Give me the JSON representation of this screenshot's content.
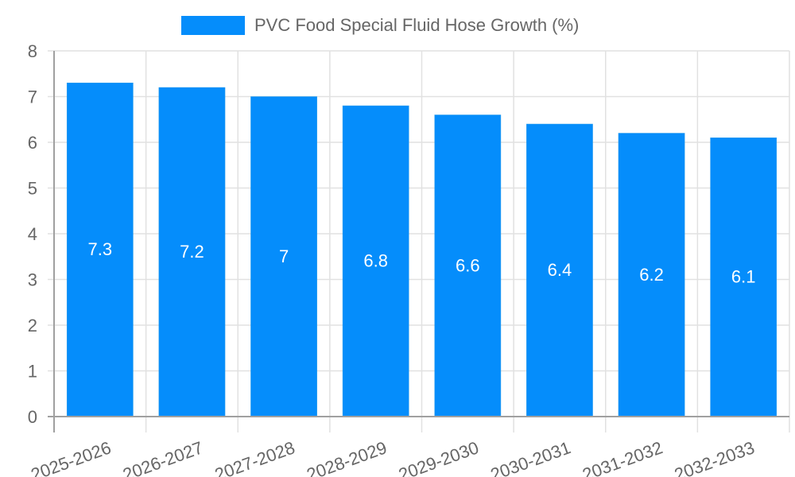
{
  "chart_data": {
    "type": "bar",
    "title": "",
    "legend": [
      {
        "label": "PVC Food Special Fluid Hose Growth (%)",
        "color": "#058DFB"
      }
    ],
    "legend_position": "top",
    "categories": [
      "2025-2026",
      "2026-2027",
      "2027-2028",
      "2028-2029",
      "2029-2030",
      "2030-2031",
      "2031-2032",
      "2032-2033"
    ],
    "series": [
      {
        "name": "PVC Food Special Fluid Hose Growth (%)",
        "values": [
          7.3,
          7.2,
          7,
          6.8,
          6.6,
          6.4,
          6.2,
          6.1
        ],
        "color": "#058DFB"
      }
    ],
    "data_labels": [
      "7.3",
      "7.2",
      "7",
      "6.8",
      "6.6",
      "6.4",
      "6.2",
      "6.1"
    ],
    "xlabel": "",
    "ylabel": "",
    "ylim": [
      0,
      8
    ],
    "yticks": [
      0,
      1,
      2,
      3,
      4,
      5,
      6,
      7,
      8
    ],
    "grid": true,
    "x_tick_rotation": -20
  },
  "legend": {
    "label": "PVC Food Special Fluid Hose Growth (%)"
  }
}
